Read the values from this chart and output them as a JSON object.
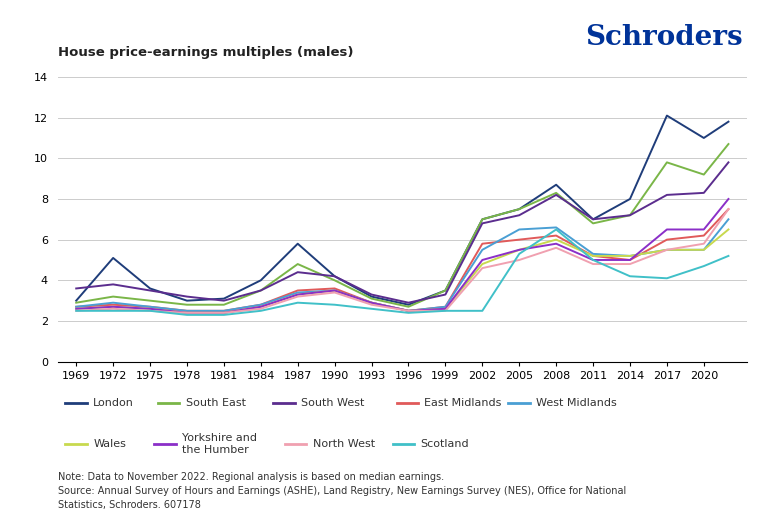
{
  "title": "House price-earnings multiples (males)",
  "schroders_text": "Schroders",
  "note_text": "Note: Data to November 2022. Regional analysis is based on median earnings.\nSource: Annual Survey of Hours and Earnings (ASHE), Land Registry, New Earnings Survey (NES), Office for National\nStatistics, Schroders. 607178",
  "years": [
    1969,
    1972,
    1975,
    1978,
    1981,
    1984,
    1987,
    1990,
    1993,
    1996,
    1999,
    2002,
    2005,
    2008,
    2011,
    2014,
    2017,
    2020,
    2022
  ],
  "series": [
    {
      "name": "London",
      "color": "#1f3d7a",
      "data": [
        3.0,
        5.1,
        3.6,
        3.0,
        3.1,
        4.0,
        5.8,
        4.2,
        3.2,
        2.8,
        3.5,
        7.0,
        7.5,
        8.7,
        7.0,
        8.0,
        12.1,
        11.0,
        11.8
      ]
    },
    {
      "name": "South East",
      "color": "#7ab648",
      "data": [
        2.9,
        3.2,
        3.0,
        2.8,
        2.8,
        3.5,
        4.8,
        4.0,
        3.1,
        2.7,
        3.5,
        7.0,
        7.5,
        8.3,
        6.8,
        7.2,
        9.8,
        9.2,
        10.7
      ]
    },
    {
      "name": "South West",
      "color": "#5b2d8e",
      "data": [
        3.6,
        3.8,
        3.5,
        3.2,
        3.0,
        3.5,
        4.4,
        4.2,
        3.3,
        2.9,
        3.3,
        6.8,
        7.2,
        8.2,
        7.0,
        7.2,
        8.2,
        8.3,
        9.8
      ]
    },
    {
      "name": "East Midlands",
      "color": "#e05a5a",
      "data": [
        2.7,
        2.8,
        2.7,
        2.5,
        2.5,
        2.8,
        3.5,
        3.6,
        2.9,
        2.5,
        2.7,
        5.8,
        6.0,
        6.2,
        5.2,
        5.0,
        6.0,
        6.2,
        7.5
      ]
    },
    {
      "name": "West Midlands",
      "color": "#4a9fd4",
      "data": [
        2.7,
        2.9,
        2.7,
        2.5,
        2.5,
        2.8,
        3.4,
        3.5,
        2.9,
        2.5,
        2.7,
        5.5,
        6.5,
        6.6,
        5.3,
        5.2,
        5.5,
        5.5,
        7.0
      ]
    },
    {
      "name": "Wales",
      "color": "#c8d94e",
      "data": [
        2.6,
        2.7,
        2.6,
        2.4,
        2.4,
        2.7,
        3.3,
        3.5,
        2.9,
        2.5,
        2.6,
        4.8,
        5.5,
        6.0,
        5.2,
        5.2,
        5.5,
        5.5,
        6.5
      ]
    },
    {
      "name": "Yorkshire and\nthe Humber",
      "color": "#8b2fc8",
      "data": [
        2.6,
        2.7,
        2.6,
        2.4,
        2.4,
        2.7,
        3.3,
        3.5,
        2.9,
        2.5,
        2.6,
        5.0,
        5.5,
        5.8,
        5.0,
        5.0,
        6.5,
        6.5,
        8.0
      ]
    },
    {
      "name": "North West",
      "color": "#f0a0b0",
      "data": [
        2.5,
        2.6,
        2.5,
        2.4,
        2.4,
        2.6,
        3.2,
        3.4,
        2.8,
        2.5,
        2.5,
        4.6,
        5.0,
        5.6,
        4.8,
        4.8,
        5.5,
        5.8,
        7.5
      ]
    },
    {
      "name": "Scotland",
      "color": "#40c0c8",
      "data": [
        2.5,
        2.5,
        2.5,
        2.3,
        2.3,
        2.5,
        2.9,
        2.8,
        2.6,
        2.4,
        2.5,
        2.5,
        5.3,
        6.5,
        5.0,
        4.2,
        4.1,
        4.7,
        5.2
      ]
    }
  ],
  "ylim": [
    0,
    14
  ],
  "yticks": [
    0,
    2,
    4,
    6,
    8,
    10,
    12,
    14
  ],
  "xtick_years": [
    1969,
    1972,
    1975,
    1978,
    1981,
    1984,
    1987,
    1990,
    1993,
    1996,
    1999,
    2002,
    2005,
    2008,
    2011,
    2014,
    2017,
    2020
  ],
  "xlim": [
    1967.5,
    2023.5
  ],
  "background_color": "#ffffff",
  "grid_color": "#cccccc",
  "title_fontsize": 9.5,
  "schroders_fontsize": 20,
  "tick_fontsize": 8,
  "legend_fontsize": 8,
  "note_fontsize": 7
}
